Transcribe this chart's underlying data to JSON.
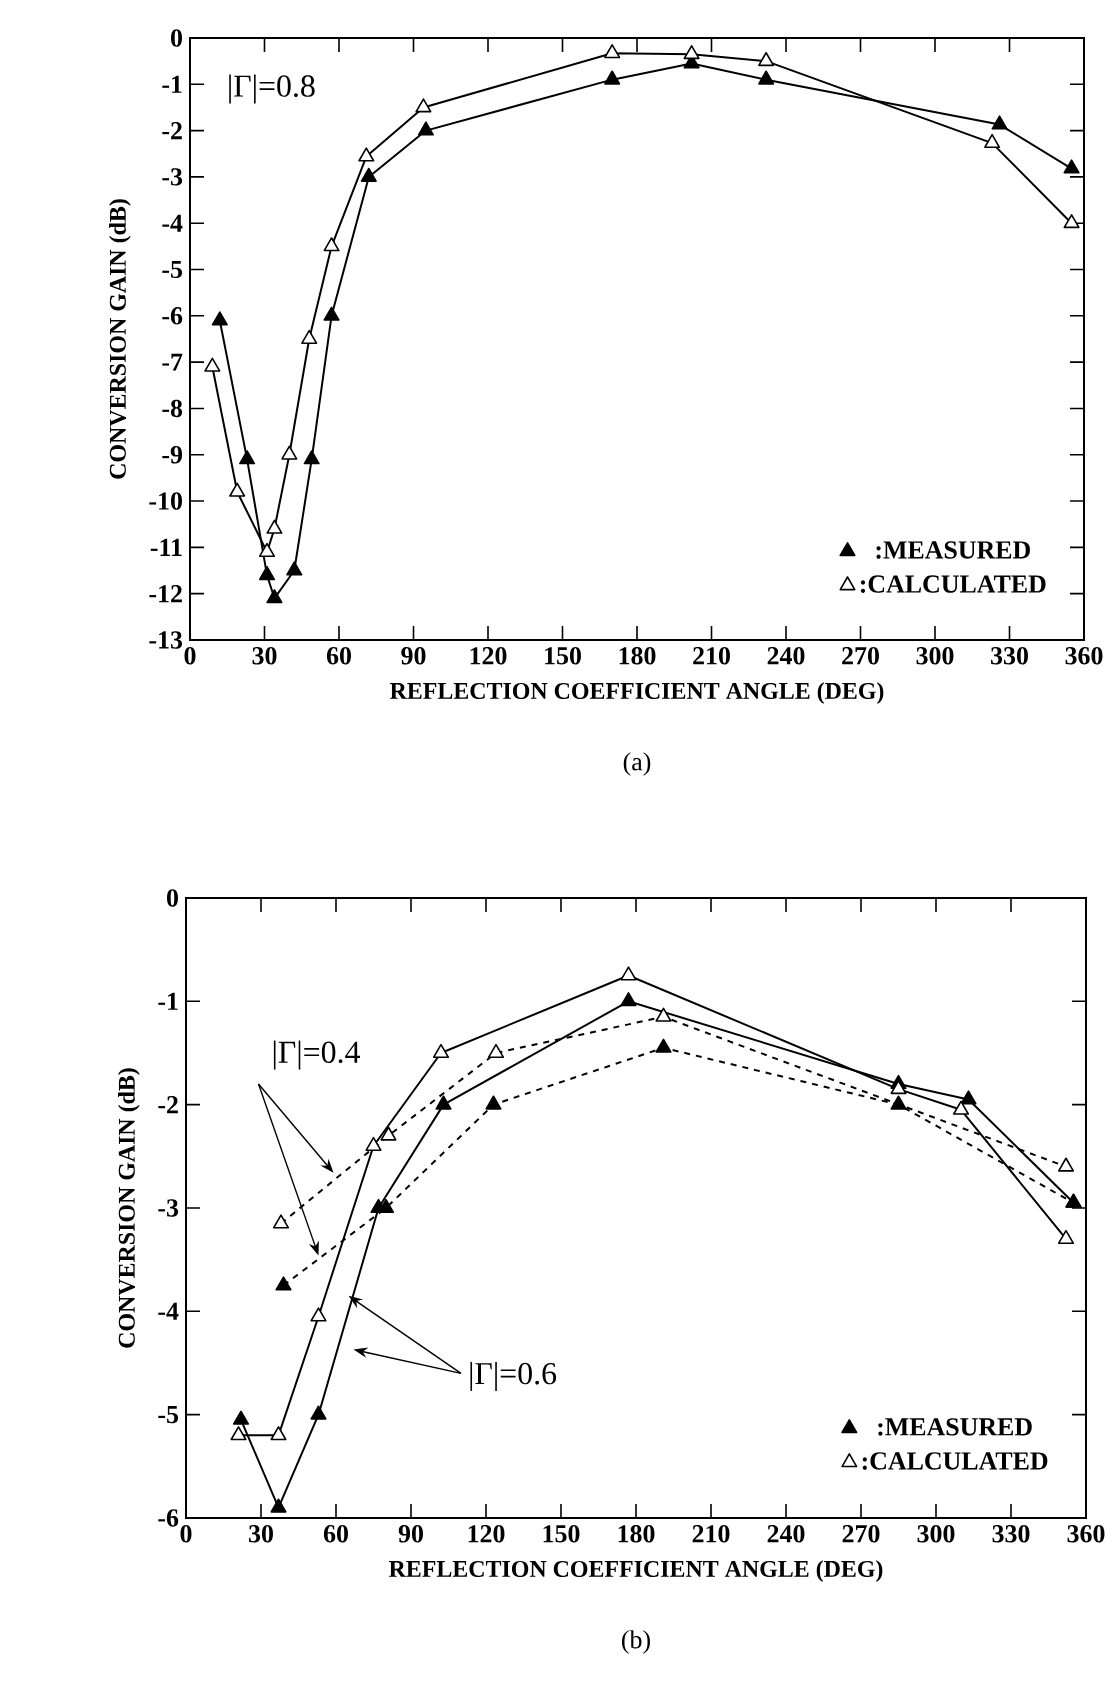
{
  "chart_data": [
    {
      "type": "line",
      "xlabel": "REFLECTION COEFFICIENT ANGLE (DEG)",
      "ylabel": "CONVERSION GAIN (dB)",
      "xlim": [
        0,
        360
      ],
      "xticks": [
        0,
        30,
        60,
        90,
        120,
        150,
        180,
        210,
        240,
        270,
        300,
        330,
        360
      ],
      "ylim": [
        -13,
        0
      ],
      "yticks": [
        -13,
        -12,
        -11,
        -10,
        -9,
        -8,
        -7,
        -6,
        -5,
        -4,
        -3,
        -2,
        -1,
        0
      ],
      "marker": "triangle",
      "legend": "bottom right",
      "grid": false,
      "annotations": [
        "|Γ|=0.8",
        "(a)"
      ],
      "series": [
        {
          "name": ":MEASURED",
          "color": "#000000",
          "line_style": "solid",
          "x": [
            12,
            23,
            31,
            34,
            42,
            49,
            57,
            72,
            95,
            170,
            202,
            232,
            326,
            355
          ],
          "values": [
            -6.1,
            -9.1,
            -11.6,
            -12.1,
            -11.5,
            -9.1,
            -6,
            -3,
            -2,
            -0.9,
            -0.55,
            -0.9,
            -1.87,
            -2.82
          ]
        },
        {
          "name": ":CALCULATED",
          "color": "#000000",
          "line_style": "solid",
          "x": [
            9,
            19,
            31,
            34,
            40,
            48,
            57,
            71,
            94,
            170,
            202,
            232,
            323,
            355
          ],
          "values": [
            -7.1,
            -9.8,
            -11.1,
            -10.6,
            -9,
            -6.5,
            -4.5,
            -2.56,
            -1.5,
            -0.33,
            -0.35,
            -0.5,
            -2.27,
            -4
          ]
        }
      ]
    },
    {
      "type": "line",
      "xlabel": "REFLECTION COEFFICIENT ANGLE (DEG)",
      "ylabel": "CONVERSION GAIN (dB)",
      "xlim": [
        0,
        360
      ],
      "xticks": [
        0,
        30,
        60,
        90,
        120,
        150,
        180,
        210,
        240,
        270,
        300,
        330,
        360
      ],
      "ylim": [
        -6,
        0
      ],
      "yticks": [
        -6,
        -5,
        -4,
        -3,
        -2,
        -1,
        0
      ],
      "marker": "triangle",
      "legend": "bottom right",
      "grid": false,
      "annotations": [
        {
          "text": "|Γ|=0.4",
          "x": 59,
          "y": -2.66
        },
        {
          "text": "|Γ|=0.6",
          "x": 65,
          "y": -3.85
        },
        "(b)"
      ],
      "series": [
        {
          "name": ":MEASURED",
          "color": "#000000",
          "line_style": "solid",
          "x": [
            22,
            37,
            53,
            77,
            103,
            177,
            285,
            313,
            355
          ],
          "values": [
            -5.05,
            -5.9,
            -5,
            -3,
            -2,
            -1,
            -1.8,
            -1.95,
            -2.95
          ]
        },
        {
          "name": ":CALCULATED",
          "color": "#000000",
          "line_style": "solid",
          "x": [
            21,
            37,
            53,
            75,
            102,
            177,
            285,
            310,
            352
          ],
          "values": [
            -5.2,
            -5.2,
            -4.05,
            -2.4,
            -1.5,
            -0.75,
            -1.85,
            -2.05,
            -3.3
          ]
        },
        {
          "color": "#000000",
          "line_style": "dashed",
          "x": [
            39,
            80,
            123,
            191,
            285,
            355
          ],
          "values": [
            -3.75,
            -3,
            -2,
            -1.45,
            -2,
            -2.95
          ]
        },
        {
          "color": "#000000",
          "line_style": "dashed",
          "x": [
            38,
            81,
            124,
            191,
            352
          ],
          "values": [
            -3.15,
            -2.3,
            -1.5,
            -1.15,
            -2.6
          ]
        }
      ]
    }
  ]
}
